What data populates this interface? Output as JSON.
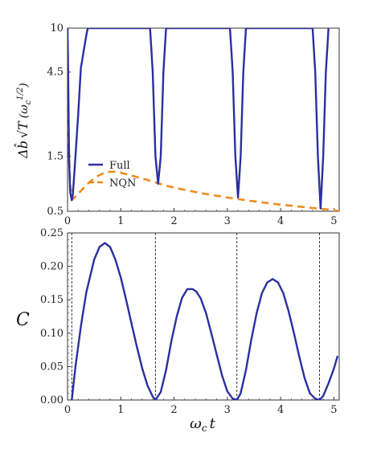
{
  "chart_data": [
    {
      "type": "line",
      "ylabel_parts": {
        "delta_b": "Δb̂",
        "sqrt_t": "√T",
        "units": "(ω",
        "sub": "c",
        "power": "1/2",
        "close": ")"
      },
      "xlim": [
        0,
        5.1
      ],
      "ylim_display": [
        0.5,
        10
      ],
      "y_scale": "custom",
      "yticks": [
        0.5,
        1.5,
        4.5,
        10
      ],
      "ytick_labels": [
        "0.5",
        "1.5",
        "4.5",
        "10"
      ],
      "xticks": [
        0,
        1,
        2,
        3,
        4,
        5
      ],
      "xtick_labels": [
        "0",
        "1",
        "2",
        "3",
        "4",
        "5"
      ],
      "legend": {
        "position": "lower-left",
        "entries": [
          "Full",
          "NQN"
        ]
      },
      "series": [
        {
          "name": "Full",
          "color": "#2b2fa0",
          "style": "solid",
          "x": [
            0.0,
            0.01,
            0.03,
            0.05,
            0.08,
            0.1,
            0.15,
            0.2,
            0.25,
            0.3,
            0.35,
            0.38,
            1.55,
            1.6,
            1.65,
            1.7,
            1.75,
            1.8,
            1.85,
            3.05,
            3.1,
            3.15,
            3.2,
            3.25,
            3.3,
            3.35,
            4.6,
            4.65,
            4.7,
            4.75,
            4.8,
            4.85,
            4.9
          ],
          "y": [
            10,
            5,
            1.4,
            0.85,
            0.7,
            0.8,
            1.5,
            3.0,
            5.0,
            7.0,
            9.0,
            10,
            10,
            4.5,
            1.5,
            1.0,
            1.5,
            4.5,
            10,
            10,
            4.5,
            1.5,
            0.75,
            1.5,
            4.5,
            10,
            10,
            4.5,
            1.5,
            0.55,
            1.5,
            4.5,
            10
          ]
        },
        {
          "name": "NQN",
          "color": "#f08c1a",
          "style": "dashed",
          "x": [
            0.0,
            0.02,
            0.05,
            0.08,
            0.1,
            0.2,
            0.3,
            0.4,
            0.5,
            0.6,
            0.7,
            0.8,
            0.9,
            1.0,
            1.2,
            1.5,
            1.8,
            2.0,
            2.5,
            3.0,
            3.5,
            4.0,
            4.5,
            5.0,
            5.1
          ],
          "y": [
            10,
            2.0,
            1.0,
            0.75,
            0.72,
            0.82,
            0.92,
            1.02,
            1.1,
            1.16,
            1.2,
            1.22,
            1.22,
            1.2,
            1.15,
            1.07,
            0.98,
            0.93,
            0.83,
            0.75,
            0.68,
            0.62,
            0.57,
            0.52,
            0.5
          ]
        }
      ]
    },
    {
      "type": "line",
      "ylabel": "C",
      "xlabel_parts": {
        "omega": "ω",
        "sub": "c",
        "t": "t"
      },
      "xlim": [
        0,
        5.1
      ],
      "ylim": [
        0,
        0.25
      ],
      "yticks": [
        0,
        0.05,
        0.1,
        0.15,
        0.2,
        0.25
      ],
      "ytick_labels": [
        "0.00",
        "0.05",
        "0.10",
        "0.15",
        "0.20",
        "0.25"
      ],
      "xticks": [
        0,
        1,
        2,
        3,
        4,
        5
      ],
      "xtick_labels": [
        "0",
        "1",
        "2",
        "3",
        "4",
        "5"
      ],
      "vlines": [
        0.08,
        1.65,
        3.18,
        4.73
      ],
      "series": [
        {
          "name": "C",
          "color": "#2b2fa0",
          "style": "solid",
          "x": [
            0.08,
            0.15,
            0.25,
            0.35,
            0.5,
            0.6,
            0.7,
            0.8,
            0.9,
            1.0,
            1.1,
            1.2,
            1.3,
            1.4,
            1.5,
            1.6,
            1.65,
            1.75,
            1.85,
            1.95,
            2.05,
            2.15,
            2.25,
            2.35,
            2.42,
            2.5,
            2.6,
            2.7,
            2.8,
            2.9,
            3.0,
            3.1,
            3.18,
            3.25,
            3.35,
            3.45,
            3.55,
            3.65,
            3.75,
            3.85,
            3.95,
            4.05,
            4.15,
            4.25,
            4.35,
            4.45,
            4.55,
            4.65,
            4.73,
            4.8,
            4.9,
            5.0,
            5.07
          ],
          "y": [
            0.0,
            0.05,
            0.11,
            0.16,
            0.21,
            0.229,
            0.235,
            0.229,
            0.21,
            0.183,
            0.15,
            0.115,
            0.08,
            0.048,
            0.022,
            0.005,
            0.0,
            0.012,
            0.045,
            0.088,
            0.125,
            0.153,
            0.166,
            0.166,
            0.162,
            0.152,
            0.13,
            0.1,
            0.068,
            0.037,
            0.013,
            0.002,
            0.0,
            0.01,
            0.045,
            0.09,
            0.13,
            0.16,
            0.176,
            0.181,
            0.176,
            0.16,
            0.133,
            0.1,
            0.065,
            0.033,
            0.01,
            0.002,
            0.0,
            0.006,
            0.025,
            0.047,
            0.066
          ]
        }
      ]
    }
  ]
}
